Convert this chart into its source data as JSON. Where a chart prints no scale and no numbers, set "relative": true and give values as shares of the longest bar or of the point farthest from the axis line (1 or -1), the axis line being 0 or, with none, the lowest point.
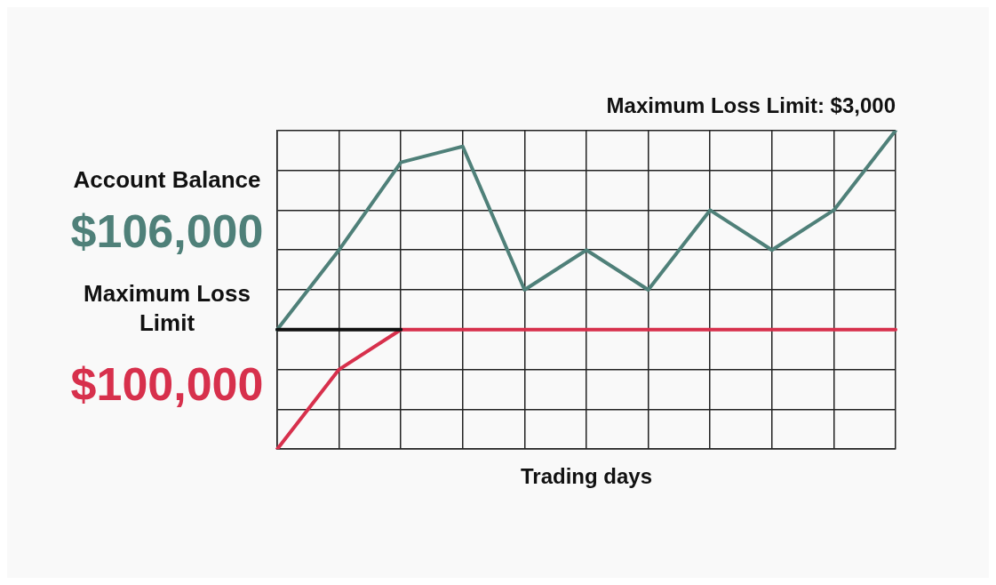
{
  "chart_data": {
    "type": "line",
    "title": "Maximum Loss Limit: $3,000",
    "xlabel": "Trading days",
    "annotations": [
      "Account Balance",
      "$106,000",
      "Maximum Loss Limit",
      "$100,000"
    ],
    "categories": [
      null,
      null,
      null,
      null,
      null,
      null,
      null,
      null,
      null,
      null,
      null
    ],
    "relative": true,
    "grid": true,
    "legend": false,
    "marker": "none",
    "line_style": "solid",
    "series": [
      {
        "color": "#4f8079",
        "values": [
          0.375,
          0.625,
          0.9,
          0.95,
          0.5,
          0.625,
          0.5,
          0.75,
          0.625,
          0.75,
          1
        ]
      },
      {
        "color": "#d7304c",
        "values": [
          0,
          0.25,
          0.375,
          0.375,
          0.375,
          0.375,
          0.375,
          0.375,
          0.375,
          0.375,
          0.375
        ]
      },
      {
        "color": "#111111",
        "values": [
          0.375,
          0.375,
          0.375,
          null,
          null,
          null,
          null,
          null,
          null,
          null,
          null
        ]
      }
    ]
  }
}
